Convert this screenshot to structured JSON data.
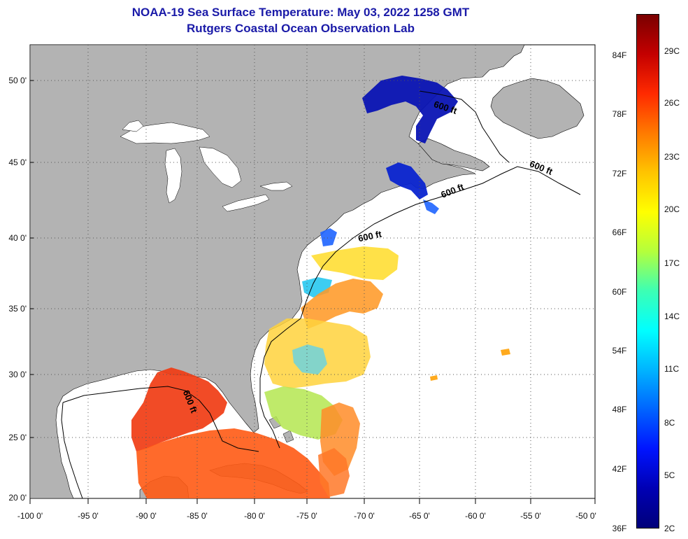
{
  "title": "NOAA-19 Sea Surface Temperature:  May 03, 2022 1258 GMT",
  "subtitle": "Rutgers Coastal Ocean Observation Lab",
  "y_axis_labels": [
    "50 0'",
    "45 0'",
    "40 0'",
    "35 0'",
    "30 0'",
    "25 0'",
    "20 0'"
  ],
  "x_axis_labels": [
    "-100 0'",
    "-95 0'",
    "-90 0'",
    "-85 0'",
    "-80 0'",
    "-75 0'",
    "-70 0'",
    "-65 0'",
    "-60 0'",
    "-55 0'",
    "-50 0'"
  ],
  "colorbar": {
    "fahrenheit_labels": [
      "84F",
      "78F",
      "72F",
      "66F",
      "60F",
      "54F",
      "48F",
      "42F",
      "36F"
    ],
    "celsius_labels": [
      "29C",
      "26C",
      "23C",
      "20C",
      "17C",
      "14C",
      "11C",
      "8C",
      "5C",
      "2C"
    ],
    "colors": [
      "#7a0000",
      "#c40000",
      "#ff2a00",
      "#ff7a00",
      "#ffc400",
      "#ffff00",
      "#b4ff3c",
      "#3cffb4",
      "#00ffff",
      "#00b4ff",
      "#0064ff",
      "#0014ff",
      "#0000b4",
      "#00007a"
    ]
  },
  "contour_labels": [
    "600 ft",
    "600 ft",
    "600 ft",
    "600 ft",
    "600 ft"
  ],
  "colors": {
    "land": "#b3b3b3",
    "water": "#ffffff",
    "title": "#1a1aa8",
    "grid": "#555555"
  }
}
